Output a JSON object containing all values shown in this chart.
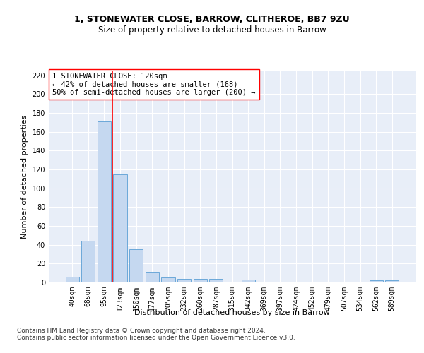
{
  "title1": "1, STONEWATER CLOSE, BARROW, CLITHEROE, BB7 9ZU",
  "title2": "Size of property relative to detached houses in Barrow",
  "xlabel": "Distribution of detached houses by size in Barrow",
  "ylabel": "Number of detached properties",
  "categories": [
    "40sqm",
    "68sqm",
    "95sqm",
    "123sqm",
    "150sqm",
    "177sqm",
    "205sqm",
    "232sqm",
    "260sqm",
    "287sqm",
    "315sqm",
    "342sqm",
    "369sqm",
    "397sqm",
    "424sqm",
    "452sqm",
    "479sqm",
    "507sqm",
    "534sqm",
    "562sqm",
    "589sqm"
  ],
  "values": [
    6,
    44,
    171,
    115,
    35,
    11,
    5,
    4,
    4,
    4,
    0,
    3,
    0,
    0,
    0,
    0,
    0,
    0,
    0,
    2,
    2
  ],
  "bar_color": "#c5d8f0",
  "bar_edge_color": "#5a9fd4",
  "vline_color": "red",
  "annotation_text": "1 STONEWATER CLOSE: 120sqm\n← 42% of detached houses are smaller (168)\n50% of semi-detached houses are larger (200) →",
  "annotation_box_color": "white",
  "annotation_box_edge": "red",
  "ylim": [
    0,
    225
  ],
  "yticks": [
    0,
    20,
    40,
    60,
    80,
    100,
    120,
    140,
    160,
    180,
    200,
    220
  ],
  "footer": "Contains HM Land Registry data © Crown copyright and database right 2024.\nContains public sector information licensed under the Open Government Licence v3.0.",
  "background_color": "#e8eef8",
  "grid_color": "white",
  "title1_fontsize": 9,
  "title2_fontsize": 8.5,
  "axis_label_fontsize": 8,
  "tick_fontsize": 7,
  "annotation_fontsize": 7.5,
  "footer_fontsize": 6.5
}
